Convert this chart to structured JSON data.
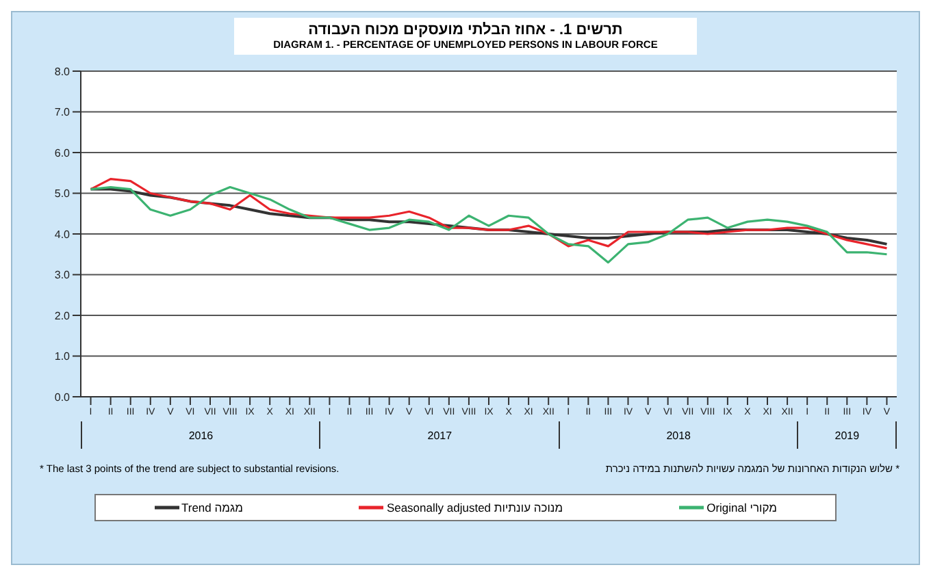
{
  "chart_data": {
    "type": "line",
    "title": "תרשים 1. - אחוז הבלתי מועסקים מכוח העבודה",
    "subtitle": "DIAGRAM 1. - PERCENTAGE OF UNEMPLOYED PERSONS IN LABOUR FORCE",
    "categories": [
      "I",
      "II",
      "III",
      "IV",
      "V",
      "VI",
      "VII",
      "VIII",
      "IX",
      "X",
      "XI",
      "XII",
      "I",
      "II",
      "III",
      "IV",
      "V",
      "VI",
      "VII",
      "VIII",
      "IX",
      "X",
      "XI",
      "XII",
      "I",
      "II",
      "III",
      "IV",
      "V",
      "VI",
      "VII",
      "VIII",
      "IX",
      "X",
      "XI",
      "XII",
      "I",
      "II",
      "III",
      "IV",
      "V"
    ],
    "series": [
      {
        "name": "Trend  מגמה",
        "color": "#333333",
        "values": [
          5.1,
          5.1,
          5.05,
          4.95,
          4.9,
          4.8,
          4.75,
          4.7,
          4.6,
          4.5,
          4.45,
          4.4,
          4.4,
          4.35,
          4.35,
          4.3,
          4.3,
          4.25,
          4.2,
          4.15,
          4.1,
          4.1,
          4.05,
          4.0,
          3.95,
          3.9,
          3.9,
          3.95,
          4.0,
          4.05,
          4.05,
          4.05,
          4.1,
          4.1,
          4.1,
          4.1,
          4.05,
          4.0,
          3.9,
          3.85,
          3.75
        ]
      },
      {
        "name": "Seasonally adjusted  מנוכה עונתיות",
        "color": "#e8242b",
        "values": [
          5.1,
          5.35,
          5.3,
          5.0,
          4.9,
          4.8,
          4.75,
          4.6,
          4.95,
          4.6,
          4.5,
          4.45,
          4.4,
          4.4,
          4.4,
          4.45,
          4.55,
          4.4,
          4.15,
          4.15,
          4.1,
          4.1,
          4.2,
          4.0,
          3.7,
          3.85,
          3.7,
          4.05,
          4.05,
          4.05,
          4.05,
          4.0,
          4.05,
          4.1,
          4.1,
          4.15,
          4.15,
          4.0,
          3.85,
          3.75,
          3.65
        ]
      },
      {
        "name": "Original  מקורי",
        "color": "#3cb371",
        "values": [
          5.1,
          5.15,
          5.1,
          4.6,
          4.45,
          4.6,
          4.95,
          5.15,
          5.0,
          4.85,
          4.6,
          4.4,
          4.4,
          4.25,
          4.1,
          4.15,
          4.35,
          4.3,
          4.1,
          4.45,
          4.2,
          4.45,
          4.4,
          4.0,
          3.75,
          3.7,
          3.3,
          3.75,
          3.8,
          4.0,
          4.35,
          4.4,
          4.15,
          4.3,
          4.35,
          4.3,
          4.2,
          4.05,
          3.55,
          3.55,
          3.5
        ]
      }
    ],
    "ylim": [
      0,
      8
    ],
    "yticks": [
      {
        "value": 0,
        "label": "0.0"
      },
      {
        "value": 1,
        "label": "1.0"
      },
      {
        "value": 2,
        "label": "2.0"
      },
      {
        "value": 3,
        "label": "3.0"
      },
      {
        "value": 4,
        "label": "4.0"
      },
      {
        "value": 5,
        "label": "5.0"
      },
      {
        "value": 6,
        "label": "6.0"
      },
      {
        "value": 7,
        "label": "7.0"
      },
      {
        "value": 8,
        "label": "8.0"
      }
    ],
    "annotations": [
      "2016",
      "2017",
      "2018",
      "2019",
      "* The last 3 points of the trend are subject to substantial revisions.",
      "* שלוש הנקודות האחרונות של המגמה עשויות להשתנות במידה ניכרת"
    ],
    "grid": "y",
    "legend": "bottom",
    "marker": "none",
    "line_style": "solid"
  }
}
